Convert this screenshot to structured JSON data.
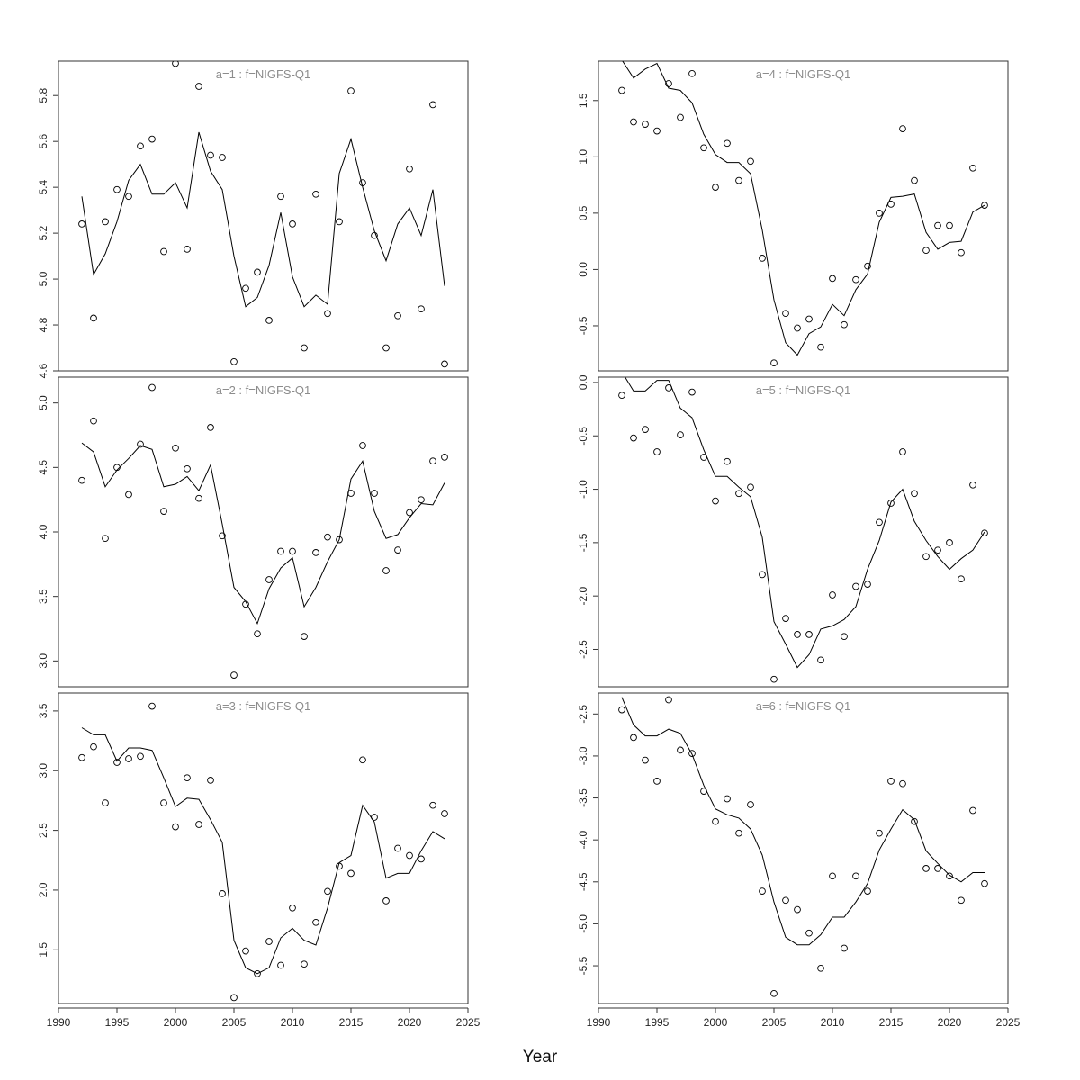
{
  "figure": {
    "xlabel": "Year"
  },
  "chart_data": [
    {
      "type": "scatter",
      "title": "a=1  :  f=NIGFS-Q1",
      "xlim": [
        1990,
        2025
      ],
      "ylim": [
        4.6,
        5.95
      ],
      "x_ticks": [],
      "y_ticks": [
        4.6,
        4.8,
        5.0,
        5.2,
        5.4,
        5.6,
        5.8
      ],
      "years": [
        1992,
        1993,
        1994,
        1995,
        1996,
        1997,
        1998,
        1999,
        2000,
        2001,
        2002,
        2003,
        2004,
        2005,
        2006,
        2007,
        2008,
        2009,
        2010,
        2011,
        2012,
        2013,
        2014,
        2015,
        2016,
        2017,
        2018,
        2019,
        2020,
        2021,
        2022,
        2023
      ],
      "observed": [
        5.24,
        4.83,
        5.25,
        5.39,
        5.36,
        5.58,
        5.61,
        5.12,
        5.94,
        5.13,
        5.84,
        5.54,
        5.53,
        4.64,
        4.96,
        5.03,
        4.82,
        5.36,
        5.24,
        4.7,
        5.37,
        4.85,
        5.25,
        5.82,
        5.42,
        5.19,
        4.7,
        4.84,
        5.48,
        4.87,
        5.76,
        4.63
      ],
      "fitted": [
        5.36,
        5.02,
        5.11,
        5.25,
        5.43,
        5.5,
        5.37,
        5.37,
        5.42,
        5.31,
        5.64,
        5.47,
        5.39,
        5.1,
        4.88,
        4.92,
        5.06,
        5.29,
        5.01,
        4.88,
        4.93,
        4.89,
        5.46,
        5.61,
        5.4,
        5.21,
        5.08,
        5.24,
        5.31,
        5.19,
        5.39,
        4.97
      ]
    },
    {
      "type": "scatter",
      "title": "a=2  :  f=NIGFS-Q1",
      "xlim": [
        1990,
        2025
      ],
      "ylim": [
        2.8,
        5.2
      ],
      "x_ticks": [],
      "y_ticks": [
        3.0,
        3.5,
        4.0,
        4.5,
        5.0
      ],
      "years": [
        1992,
        1993,
        1994,
        1995,
        1996,
        1997,
        1998,
        1999,
        2000,
        2001,
        2002,
        2003,
        2004,
        2005,
        2006,
        2007,
        2008,
        2009,
        2010,
        2011,
        2012,
        2013,
        2014,
        2015,
        2016,
        2017,
        2018,
        2019,
        2020,
        2021,
        2022,
        2023
      ],
      "observed": [
        4.4,
        4.86,
        3.95,
        4.5,
        4.29,
        4.68,
        5.12,
        4.16,
        4.65,
        4.49,
        4.26,
        4.81,
        3.97,
        2.89,
        3.44,
        3.21,
        3.63,
        3.85,
        3.85,
        3.19,
        3.84,
        3.96,
        3.94,
        4.3,
        4.67,
        4.3,
        3.7,
        3.86,
        4.15,
        4.25,
        4.55,
        4.58
      ],
      "fitted": [
        4.69,
        4.62,
        4.35,
        4.48,
        4.57,
        4.67,
        4.64,
        4.35,
        4.37,
        4.43,
        4.32,
        4.52,
        4.06,
        3.57,
        3.46,
        3.29,
        3.56,
        3.72,
        3.8,
        3.42,
        3.57,
        3.77,
        3.94,
        4.41,
        4.55,
        4.16,
        3.95,
        3.98,
        4.11,
        4.22,
        4.21,
        4.38
      ]
    },
    {
      "type": "scatter",
      "title": "a=3  :  f=NIGFS-Q1",
      "xlim": [
        1990,
        2025
      ],
      "ylim": [
        1.05,
        3.65
      ],
      "x_ticks": [
        1990,
        1995,
        2000,
        2005,
        2010,
        2015,
        2020,
        2025
      ],
      "y_ticks": [
        1.5,
        2.0,
        2.5,
        3.0,
        3.5
      ],
      "years": [
        1992,
        1993,
        1994,
        1995,
        1996,
        1997,
        1998,
        1999,
        2000,
        2001,
        2002,
        2003,
        2004,
        2005,
        2006,
        2007,
        2008,
        2009,
        2010,
        2011,
        2012,
        2013,
        2014,
        2015,
        2016,
        2017,
        2018,
        2019,
        2020,
        2021,
        2022,
        2023
      ],
      "observed": [
        3.11,
        3.2,
        2.73,
        3.07,
        3.1,
        3.12,
        3.54,
        2.73,
        2.53,
        2.94,
        2.55,
        2.92,
        1.97,
        1.1,
        1.49,
        1.3,
        1.57,
        1.37,
        1.85,
        1.38,
        1.73,
        1.99,
        2.2,
        2.14,
        3.09,
        2.61,
        1.91,
        2.35,
        2.29,
        2.26,
        2.71,
        2.64
      ],
      "fitted": [
        3.36,
        3.3,
        3.3,
        3.08,
        3.19,
        3.19,
        3.17,
        2.94,
        2.7,
        2.77,
        2.76,
        2.59,
        2.4,
        1.58,
        1.35,
        1.3,
        1.35,
        1.6,
        1.68,
        1.58,
        1.54,
        1.85,
        2.23,
        2.29,
        2.71,
        2.57,
        2.1,
        2.14,
        2.14,
        2.33,
        2.49,
        2.43
      ]
    },
    {
      "type": "scatter",
      "title": "a=4  :  f=NIGFS-Q1",
      "xlim": [
        1990,
        2025
      ],
      "ylim": [
        -0.9,
        1.85
      ],
      "x_ticks": [],
      "y_ticks": [
        -0.5,
        0.0,
        0.5,
        1.0,
        1.5
      ],
      "years": [
        1992,
        1993,
        1994,
        1995,
        1996,
        1997,
        1998,
        1999,
        2000,
        2001,
        2002,
        2003,
        2004,
        2005,
        2006,
        2007,
        2008,
        2009,
        2010,
        2011,
        2012,
        2013,
        2014,
        2015,
        2016,
        2017,
        2018,
        2019,
        2020,
        2021,
        2022,
        2023
      ],
      "observed": [
        1.59,
        1.31,
        1.29,
        1.23,
        1.65,
        1.35,
        1.74,
        1.08,
        0.73,
        1.12,
        0.79,
        0.96,
        0.1,
        -0.83,
        -0.39,
        -0.52,
        -0.44,
        -0.69,
        -0.08,
        -0.49,
        -0.09,
        0.03,
        0.5,
        0.58,
        1.25,
        0.79,
        0.17,
        0.39,
        0.39,
        0.15,
        0.9,
        0.57
      ],
      "fitted": [
        1.86,
        1.7,
        1.78,
        1.83,
        1.61,
        1.59,
        1.48,
        1.2,
        1.02,
        0.95,
        0.95,
        0.85,
        0.35,
        -0.27,
        -0.65,
        -0.76,
        -0.57,
        -0.51,
        -0.31,
        -0.41,
        -0.18,
        -0.04,
        0.42,
        0.64,
        0.65,
        0.67,
        0.33,
        0.18,
        0.24,
        0.25,
        0.51,
        0.57
      ]
    },
    {
      "type": "scatter",
      "title": "a=5  :  f=NIGFS-Q1",
      "xlim": [
        1990,
        2025
      ],
      "ylim": [
        -2.85,
        0.05
      ],
      "x_ticks": [],
      "y_ticks": [
        -2.5,
        -2.0,
        -1.5,
        -1.0,
        -0.5,
        0.0
      ],
      "years": [
        1992,
        1993,
        1994,
        1995,
        1996,
        1997,
        1998,
        1999,
        2000,
        2001,
        2002,
        2003,
        2004,
        2005,
        2006,
        2007,
        2008,
        2009,
        2010,
        2011,
        2012,
        2013,
        2014,
        2015,
        2016,
        2017,
        2018,
        2019,
        2020,
        2021,
        2022,
        2023
      ],
      "observed": [
        -0.12,
        -0.52,
        -0.44,
        -0.65,
        -0.05,
        -0.49,
        -0.09,
        -0.7,
        -1.11,
        -0.74,
        -1.04,
        -0.98,
        -1.8,
        -2.78,
        -2.21,
        -2.36,
        -2.36,
        -2.6,
        -1.99,
        -2.38,
        -1.91,
        -1.89,
        -1.31,
        -1.13,
        -0.65,
        -1.04,
        -1.63,
        -1.57,
        -1.5,
        -1.84,
        -0.96,
        -1.41
      ],
      "fitted": [
        0.1,
        -0.08,
        -0.08,
        0.02,
        0.02,
        -0.24,
        -0.33,
        -0.63,
        -0.88,
        -0.88,
        -0.98,
        -1.07,
        -1.45,
        -2.24,
        -2.45,
        -2.67,
        -2.55,
        -2.31,
        -2.28,
        -2.22,
        -2.1,
        -1.75,
        -1.48,
        -1.12,
        -1.0,
        -1.3,
        -1.48,
        -1.63,
        -1.75,
        -1.65,
        -1.57,
        -1.4
      ]
    },
    {
      "type": "scatter",
      "title": "a=6  :  f=NIGFS-Q1",
      "xlim": [
        1990,
        2025
      ],
      "ylim": [
        -5.95,
        -2.25
      ],
      "x_ticks": [
        1990,
        1995,
        2000,
        2005,
        2010,
        2015,
        2020,
        2025
      ],
      "y_ticks": [
        -5.5,
        -5.0,
        -4.5,
        -4.0,
        -3.5,
        -3.0,
        -2.5
      ],
      "years": [
        1992,
        1993,
        1994,
        1995,
        1996,
        1997,
        1998,
        1999,
        2000,
        2001,
        2002,
        2003,
        2004,
        2005,
        2006,
        2007,
        2008,
        2009,
        2010,
        2011,
        2012,
        2013,
        2014,
        2015,
        2016,
        2017,
        2018,
        2019,
        2020,
        2021,
        2022,
        2023
      ],
      "observed": [
        -2.45,
        -2.78,
        -3.05,
        -3.3,
        -2.33,
        -2.93,
        -2.97,
        -3.42,
        -3.78,
        -3.51,
        -3.92,
        -3.58,
        -4.61,
        -5.83,
        -4.72,
        -4.83,
        -5.11,
        -5.53,
        -4.43,
        -5.29,
        -4.43,
        -4.61,
        -3.92,
        -3.3,
        -3.33,
        -3.78,
        -4.34,
        -4.34,
        -4.43,
        -4.72,
        -3.65,
        -4.52
      ],
      "fitted": [
        -2.3,
        -2.63,
        -2.76,
        -2.76,
        -2.68,
        -2.73,
        -2.98,
        -3.35,
        -3.63,
        -3.7,
        -3.74,
        -3.87,
        -4.18,
        -4.74,
        -5.16,
        -5.25,
        -5.25,
        -5.13,
        -4.92,
        -4.92,
        -4.74,
        -4.52,
        -4.12,
        -3.87,
        -3.64,
        -3.76,
        -4.13,
        -4.28,
        -4.42,
        -4.5,
        -4.39,
        -4.39
      ]
    }
  ]
}
